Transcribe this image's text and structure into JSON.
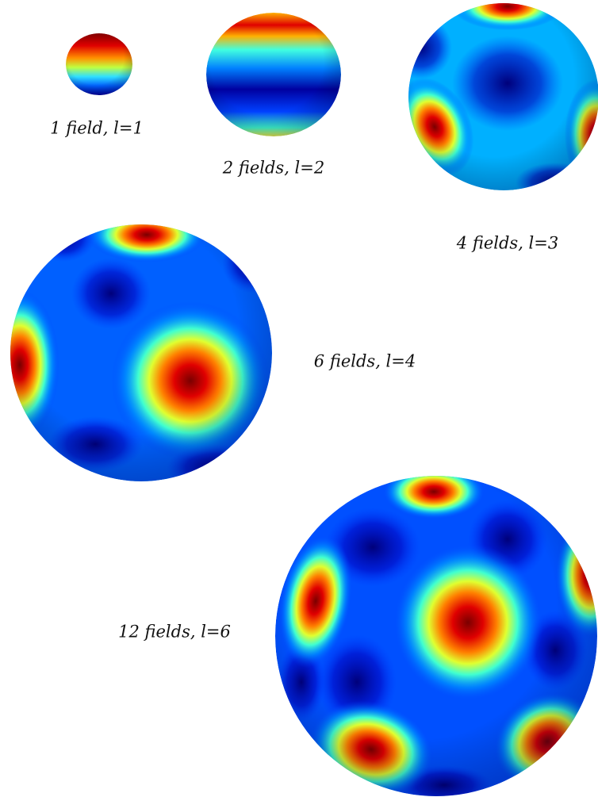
{
  "labels": [
    "1 field, l=1",
    "2 fields, l=2",
    "4 fields, l=3",
    "6 fields, l=4",
    "12 fields, l=6"
  ]
}
